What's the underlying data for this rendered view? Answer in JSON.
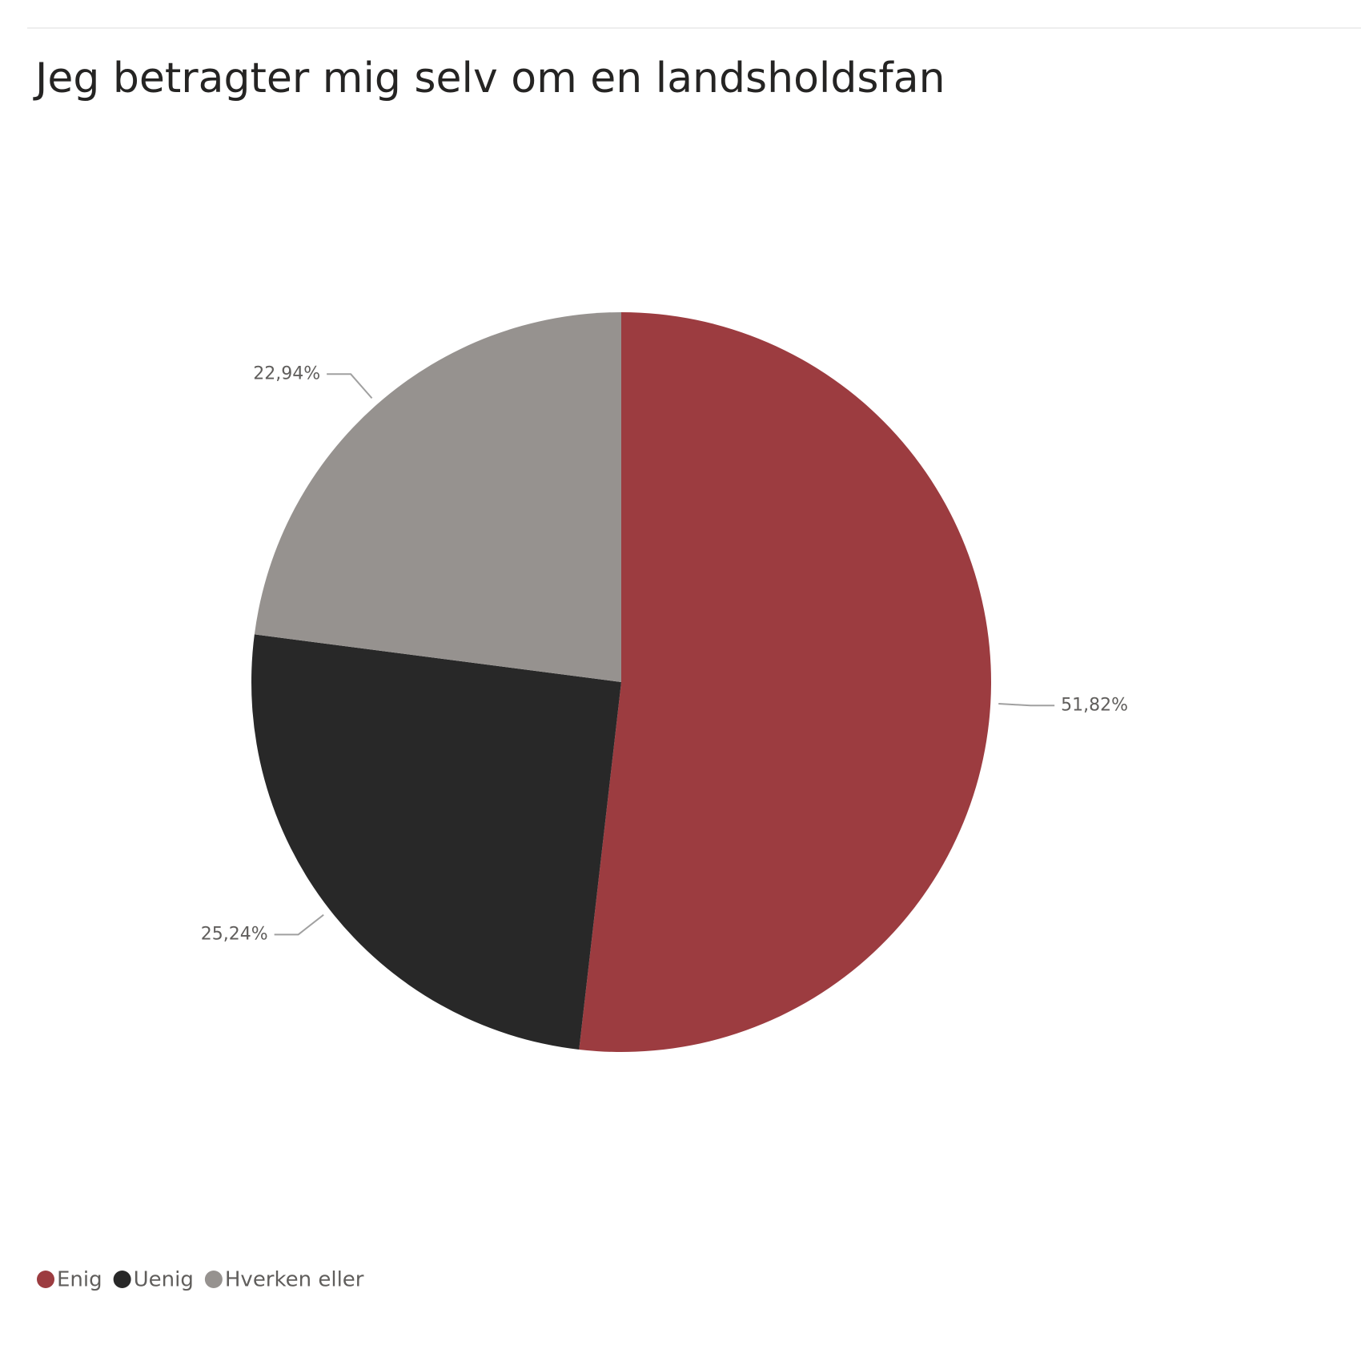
{
  "chart_data": {
    "type": "pie",
    "title": "Jeg betragter mig selv om en landsholdsfan",
    "categories": [
      "Enig",
      "Uenig",
      "Hverken eller"
    ],
    "values": [
      51.82,
      25.24,
      22.94
    ],
    "value_labels": [
      "51,82%",
      "25,24%",
      "22,94%"
    ],
    "colors": [
      "#9c3c40",
      "#282828",
      "#96928f"
    ],
    "legend": "bottom-left"
  }
}
